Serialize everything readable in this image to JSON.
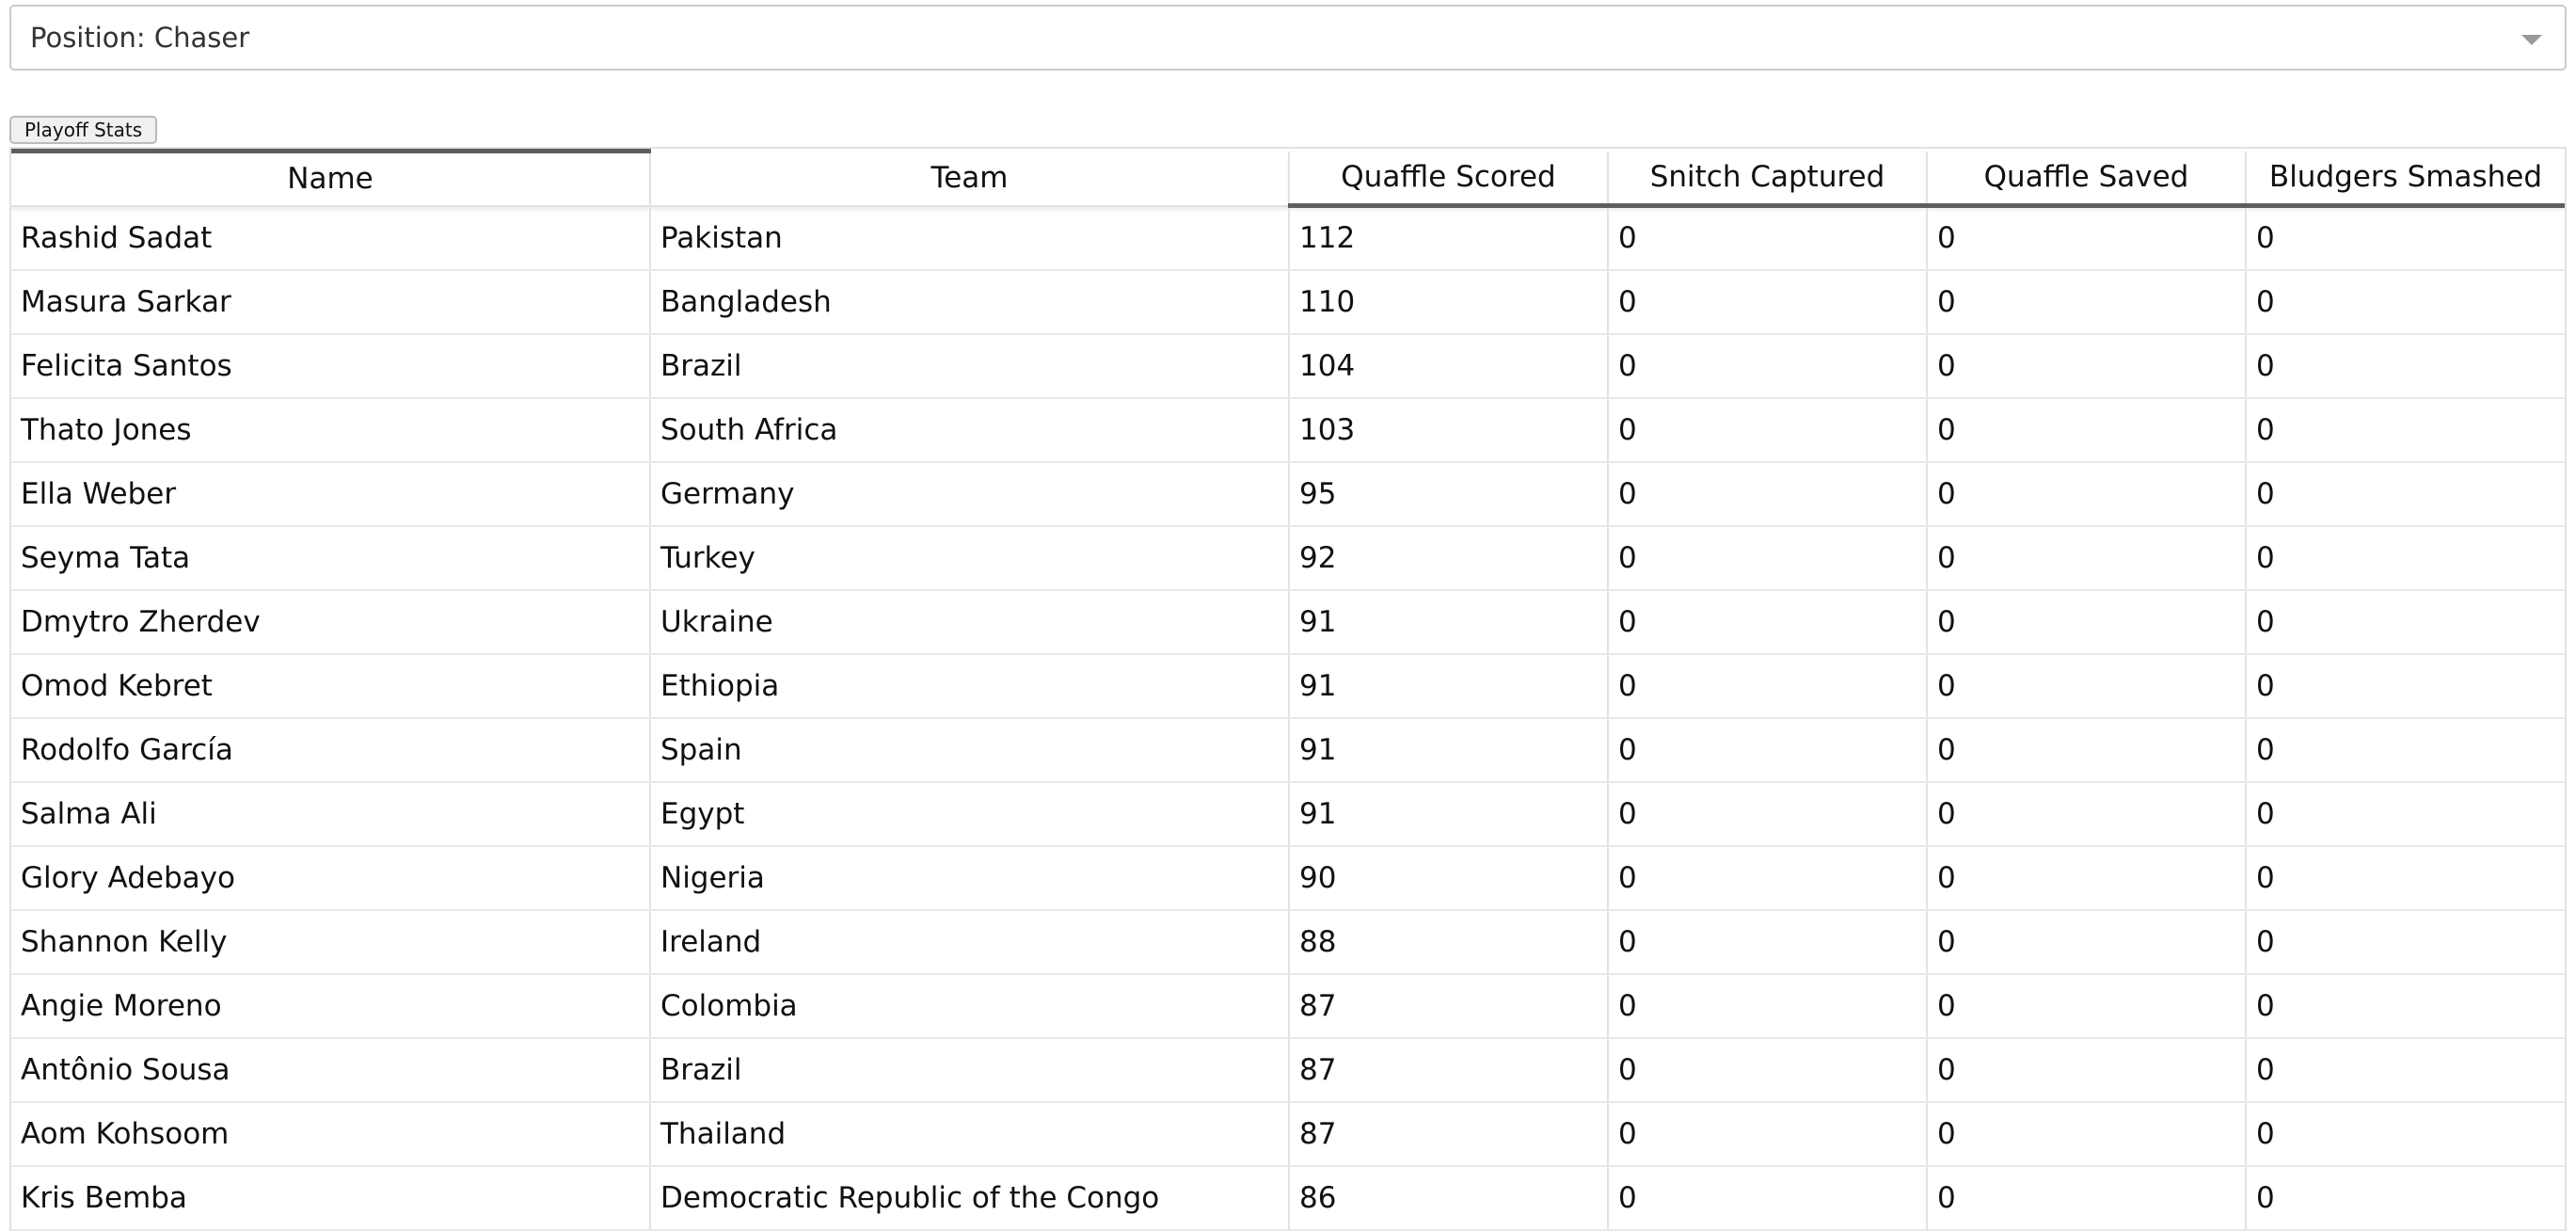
{
  "filter": {
    "label": "Position: Chaser",
    "caret_icon": "caret-down-icon"
  },
  "playoff_button": {
    "label": "Playoff Stats"
  },
  "table": {
    "columns": [
      "Name",
      "Team",
      "Quaffle Scored",
      "Snitch Captured",
      "Quaffle Saved",
      "Bludgers Smashed"
    ],
    "rows": [
      [
        "Rashid Sadat",
        "Pakistan",
        "112",
        "0",
        "0",
        "0"
      ],
      [
        "Masura Sarkar",
        "Bangladesh",
        "110",
        "0",
        "0",
        "0"
      ],
      [
        "Felicita Santos",
        "Brazil",
        "104",
        "0",
        "0",
        "0"
      ],
      [
        "Thato Jones",
        "South Africa",
        "103",
        "0",
        "0",
        "0"
      ],
      [
        "Ella Weber",
        "Germany",
        "95",
        "0",
        "0",
        "0"
      ],
      [
        "Seyma Tata",
        "Turkey",
        "92",
        "0",
        "0",
        "0"
      ],
      [
        "Dmytro Zherdev",
        "Ukraine",
        "91",
        "0",
        "0",
        "0"
      ],
      [
        "Omod Kebret",
        "Ethiopia",
        "91",
        "0",
        "0",
        "0"
      ],
      [
        "Rodolfo García",
        "Spain",
        "91",
        "0",
        "0",
        "0"
      ],
      [
        "Salma Ali",
        "Egypt",
        "91",
        "0",
        "0",
        "0"
      ],
      [
        "Glory Adebayo",
        "Nigeria",
        "90",
        "0",
        "0",
        "0"
      ],
      [
        "Shannon Kelly",
        "Ireland",
        "88",
        "0",
        "0",
        "0"
      ],
      [
        "Angie Moreno",
        "Colombia",
        "87",
        "0",
        "0",
        "0"
      ],
      [
        "Antônio Sousa",
        "Brazil",
        "87",
        "0",
        "0",
        "0"
      ],
      [
        "Aom Kohsoom",
        "Thailand",
        "87",
        "0",
        "0",
        "0"
      ],
      [
        "Kris Bemba",
        "Democratic Republic of the Congo",
        "86",
        "0",
        "0",
        "0"
      ]
    ]
  }
}
